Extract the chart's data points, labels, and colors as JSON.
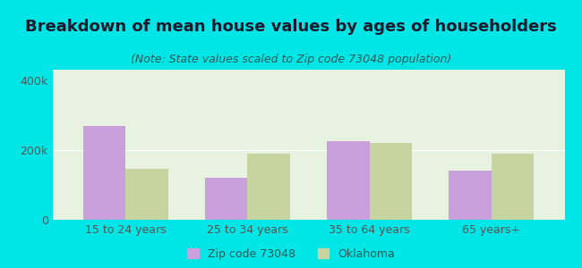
{
  "title": "Breakdown of mean house values by ages of householders",
  "subtitle": "(Note: State values scaled to Zip code 73048 population)",
  "categories": [
    "15 to 24 years",
    "25 to 34 years",
    "35 to 64 years",
    "65 years+"
  ],
  "zip_values": [
    270000,
    120000,
    225000,
    140000
  ],
  "ok_values": [
    145000,
    190000,
    220000,
    190000
  ],
  "zip_color": "#c9a0dc",
  "ok_color": "#c8d4a0",
  "background_outer": "#00e5e5",
  "background_inner": "#e8f2e0",
  "ylim": [
    0,
    430000
  ],
  "ytick_labels": [
    "0",
    "200k",
    "400k"
  ],
  "ytick_values": [
    0,
    200000,
    400000
  ],
  "legend_zip": "Zip code 73048",
  "legend_ok": "Oklahoma",
  "bar_width": 0.35,
  "title_fontsize": 13,
  "subtitle_fontsize": 9,
  "axis_fontsize": 9,
  "legend_fontsize": 9
}
